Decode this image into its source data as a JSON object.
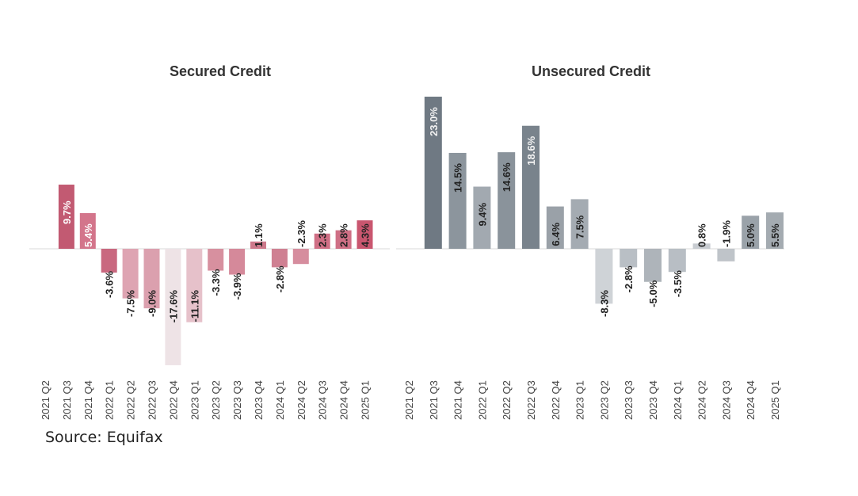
{
  "source": "Source: Equifax",
  "chart_data": [
    {
      "type": "bar",
      "title": "Secured Credit",
      "xlabel": "",
      "ylabel": "",
      "ylim": [
        -17.6,
        23.0
      ],
      "categories": [
        "2021 Q2",
        "2021 Q3",
        "2021 Q4",
        "2022 Q1",
        "2022 Q2",
        "2022 Q3",
        "2022 Q4",
        "2023 Q1",
        "2023 Q2",
        "2023 Q3",
        "2023 Q4",
        "2024 Q1",
        "2024 Q2",
        "2024 Q3",
        "2024 Q4",
        "2025 Q1"
      ],
      "values": [
        null,
        9.7,
        5.4,
        -3.6,
        -7.5,
        -9.0,
        -17.6,
        -11.1,
        -3.3,
        -3.9,
        1.1,
        -2.8,
        -2.3,
        2.3,
        2.8,
        4.3
      ],
      "labels": [
        "",
        "9.7%",
        "5.4%",
        "-3.6%",
        "-7.5%",
        "-9.0%",
        "-17.6%",
        "-11.1%",
        "-3.3%",
        "-3.9%",
        "1.1%",
        "-2.8%",
        "-2.3%",
        "2.3%",
        "2.8%",
        "4.3%"
      ],
      "colors": [
        "#ffffff",
        "#c25a72",
        "#d3758b",
        "#c9687f",
        "#dea4b2",
        "#dba0ae",
        "#eee3e6",
        "#e6c1ca",
        "#d7909f",
        "#d5899a",
        "#cd798b",
        "#cf8092",
        "#d68d9e",
        "#cf6f85",
        "#cf6f85",
        "#c9566f"
      ],
      "label_colors": [
        "#ffffff",
        "#ffffff",
        "#ffffff",
        "#222222",
        "#222222",
        "#222222",
        "#222222",
        "#222222",
        "#222222",
        "#222222",
        "#222222",
        "#222222",
        "#222222",
        "#222222",
        "#222222",
        "#222222"
      ],
      "grid": false,
      "legend": "none"
    },
    {
      "type": "bar",
      "title": "Unsecured Credit",
      "xlabel": "",
      "ylabel": "",
      "ylim": [
        -17.6,
        23.0
      ],
      "categories": [
        "2021 Q2",
        "2021 Q3",
        "2021 Q4",
        "2022 Q1",
        "2022 Q2",
        "2022 Q3",
        "2022 Q4",
        "2023 Q1",
        "2023 Q2",
        "2023 Q3",
        "2023 Q4",
        "2024 Q1",
        "2024 Q2",
        "2024 Q3",
        "2024 Q4",
        "2025 Q1"
      ],
      "values": [
        null,
        23.0,
        14.5,
        9.4,
        14.6,
        18.6,
        6.4,
        7.5,
        -8.3,
        -2.8,
        -5.0,
        -3.5,
        0.8,
        -1.9,
        5.0,
        5.5
      ],
      "labels": [
        "",
        "23.0%",
        "14.5%",
        "9.4%",
        "14.6%",
        "18.6%",
        "6.4%",
        "7.5%",
        "-8.3%",
        "-2.8%",
        "-5.0%",
        "-3.5%",
        "0.8%",
        "-1.9%",
        "5.0%",
        "5.5%"
      ],
      "colors": [
        "#ffffff",
        "#6f7983",
        "#8c959d",
        "#a2a9b0",
        "#8a939b",
        "#79838c",
        "#9aa1a8",
        "#a4abb2",
        "#cfd3d7",
        "#b9bfc5",
        "#aeb4ba",
        "#b8bec4",
        "#c8ccd1",
        "#bfc4c9",
        "#9aa2a9",
        "#a4abb1"
      ],
      "label_colors": [
        "#ffffff",
        "#f2f2f2",
        "#222222",
        "#222222",
        "#222222",
        "#f2f2f2",
        "#222222",
        "#222222",
        "#222222",
        "#222222",
        "#222222",
        "#222222",
        "#222222",
        "#222222",
        "#222222",
        "#222222"
      ],
      "grid": false,
      "legend": "none"
    }
  ]
}
